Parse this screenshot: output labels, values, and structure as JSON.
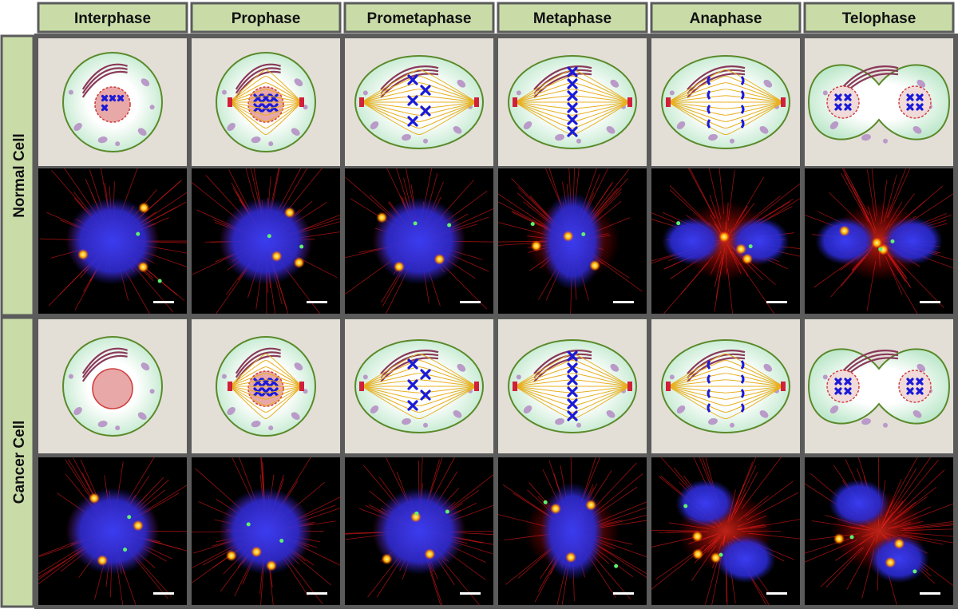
{
  "columns": [
    "Interphase",
    "Prophase",
    "Prometaphase",
    "Metaphase",
    "Anaphase",
    "Telophase"
  ],
  "rows": [
    {
      "label": "Normal Cell"
    },
    {
      "label": "Cancer Cell"
    }
  ]
}
